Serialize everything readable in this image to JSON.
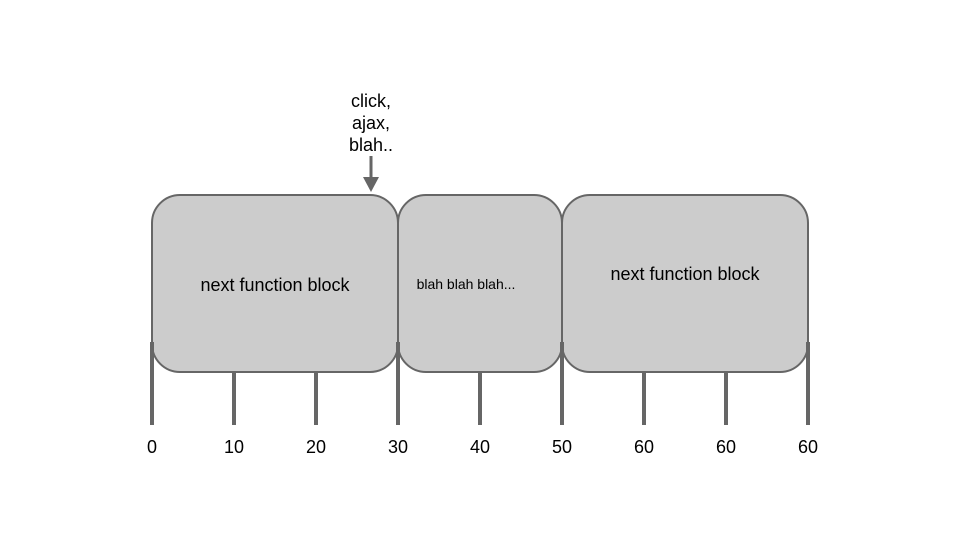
{
  "event": {
    "lines": [
      "click,",
      "ajax,",
      "blah.."
    ]
  },
  "blocks": [
    {
      "label": "next function block"
    },
    {
      "label": "blah blah blah..."
    },
    {
      "label": "next function block"
    }
  ],
  "ticks": [
    "0",
    "10",
    "20",
    "30",
    "40",
    "50",
    "60",
    "60",
    "60"
  ],
  "colors": {
    "block_fill": "#cccccc",
    "line": "#666666",
    "text": "#000000"
  }
}
